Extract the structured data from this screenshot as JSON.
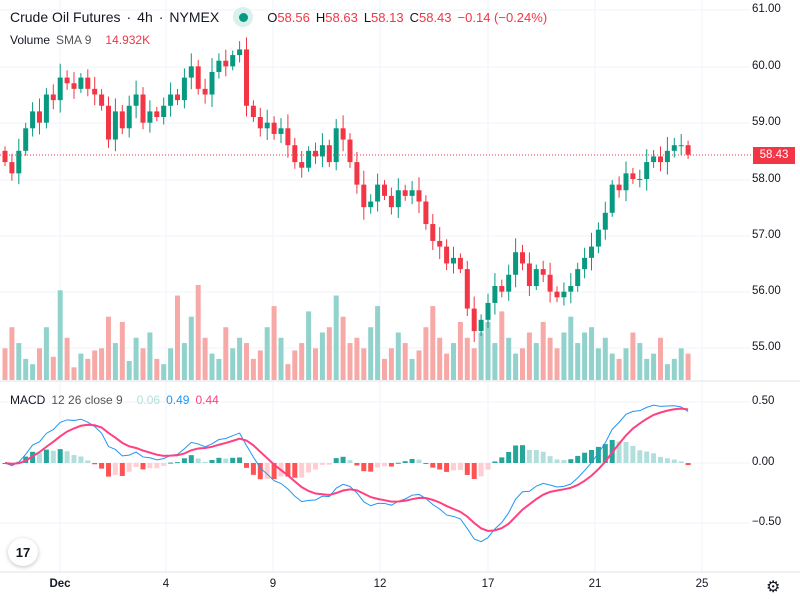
{
  "header": {
    "symbol": "Crude Oil Futures",
    "interval": "4h",
    "exchange": "NYMEX",
    "separator": "·",
    "o_label": "O",
    "open": "58.56",
    "h_label": "H",
    "high": "58.63",
    "l_label": "L",
    "low": "58.13",
    "c_label": "C",
    "close": "58.43",
    "change": "−0.14 (−0.24%)"
  },
  "volume_legend": {
    "label": "Volume",
    "sma": "SMA 9",
    "value": "14.932K"
  },
  "macd_legend": {
    "label": "MACD",
    "params": "12 26 close 9",
    "hist": "0.06",
    "macd": "0.49",
    "signal": "0.44"
  },
  "price_axis": [
    "61.00",
    "60.00",
    "59.00",
    "58.00",
    "57.00",
    "56.00",
    "55.00"
  ],
  "macd_axis": [
    "0.50",
    "0.00",
    "−0.50"
  ],
  "current_price": "58.43",
  "time_axis": [
    "Dec",
    "4",
    "9",
    "12",
    "17",
    "21",
    "25"
  ],
  "logo_text": "17",
  "colors": {
    "up": "#089981",
    "down": "#f23645",
    "vol_up": "#92d2cc",
    "vol_down": "#f7a9a7",
    "macd": "#2196f3",
    "signal": "#ff4081",
    "hist_up_strong": "#26a69a",
    "hist_up_weak": "#b2dfdb",
    "hist_down_strong": "#ff5252",
    "hist_down_weak": "#ffcdd2"
  },
  "chart_data": {
    "type": "candlestick",
    "first_open": 58.5,
    "closes": [
      58.3,
      58.1,
      58.5,
      58.9,
      59.2,
      59.0,
      59.5,
      59.4,
      59.8,
      59.7,
      59.6,
      59.8,
      59.6,
      59.5,
      59.3,
      58.7,
      59.2,
      58.9,
      59.3,
      59.5,
      59.0,
      59.2,
      59.1,
      59.3,
      59.5,
      59.4,
      59.8,
      60.0,
      59.6,
      59.5,
      59.9,
      60.1,
      60.0,
      60.2,
      60.3,
      59.3,
      59.1,
      58.9,
      59.0,
      58.8,
      58.9,
      58.6,
      58.3,
      58.2,
      58.5,
      58.4,
      58.6,
      58.3,
      58.9,
      58.7,
      58.3,
      57.9,
      57.5,
      57.6,
      57.9,
      57.7,
      57.5,
      57.8,
      57.7,
      57.8,
      57.6,
      57.2,
      56.9,
      56.8,
      56.5,
      56.6,
      56.4,
      55.7,
      55.3,
      55.5,
      55.8,
      56.1,
      56.0,
      56.3,
      56.7,
      56.5,
      56.1,
      56.4,
      56.3,
      56.0,
      55.9,
      56.0,
      56.1,
      56.4,
      56.6,
      56.8,
      57.1,
      57.4,
      57.9,
      57.8,
      58.1,
      58.0,
      58.0,
      58.3,
      58.4,
      58.3,
      58.5,
      58.6,
      58.6,
      58.43
    ],
    "volumes_k": [
      30,
      50,
      35,
      20,
      15,
      30,
      50,
      22,
      85,
      40,
      12,
      25,
      20,
      28,
      30,
      60,
      35,
      55,
      18,
      40,
      30,
      45,
      20,
      15,
      30,
      80,
      35,
      60,
      90,
      40,
      25,
      20,
      50,
      30,
      40,
      35,
      20,
      28,
      50,
      70,
      40,
      15,
      28,
      35,
      65,
      30,
      45,
      50,
      80,
      60,
      35,
      40,
      30,
      50,
      70,
      20,
      30,
      45,
      35,
      20,
      28,
      50,
      70,
      40,
      25,
      35,
      55,
      40,
      30,
      45,
      55,
      35,
      65,
      40,
      25,
      30,
      45,
      35,
      55,
      40,
      30,
      45,
      60,
      35,
      45,
      50,
      30,
      40,
      25,
      20,
      30,
      45,
      35,
      20,
      25,
      40,
      15,
      20,
      30,
      25
    ],
    "price_range": [
      54.8,
      61.1
    ],
    "macd_range": [
      -0.72,
      0.6
    ]
  }
}
